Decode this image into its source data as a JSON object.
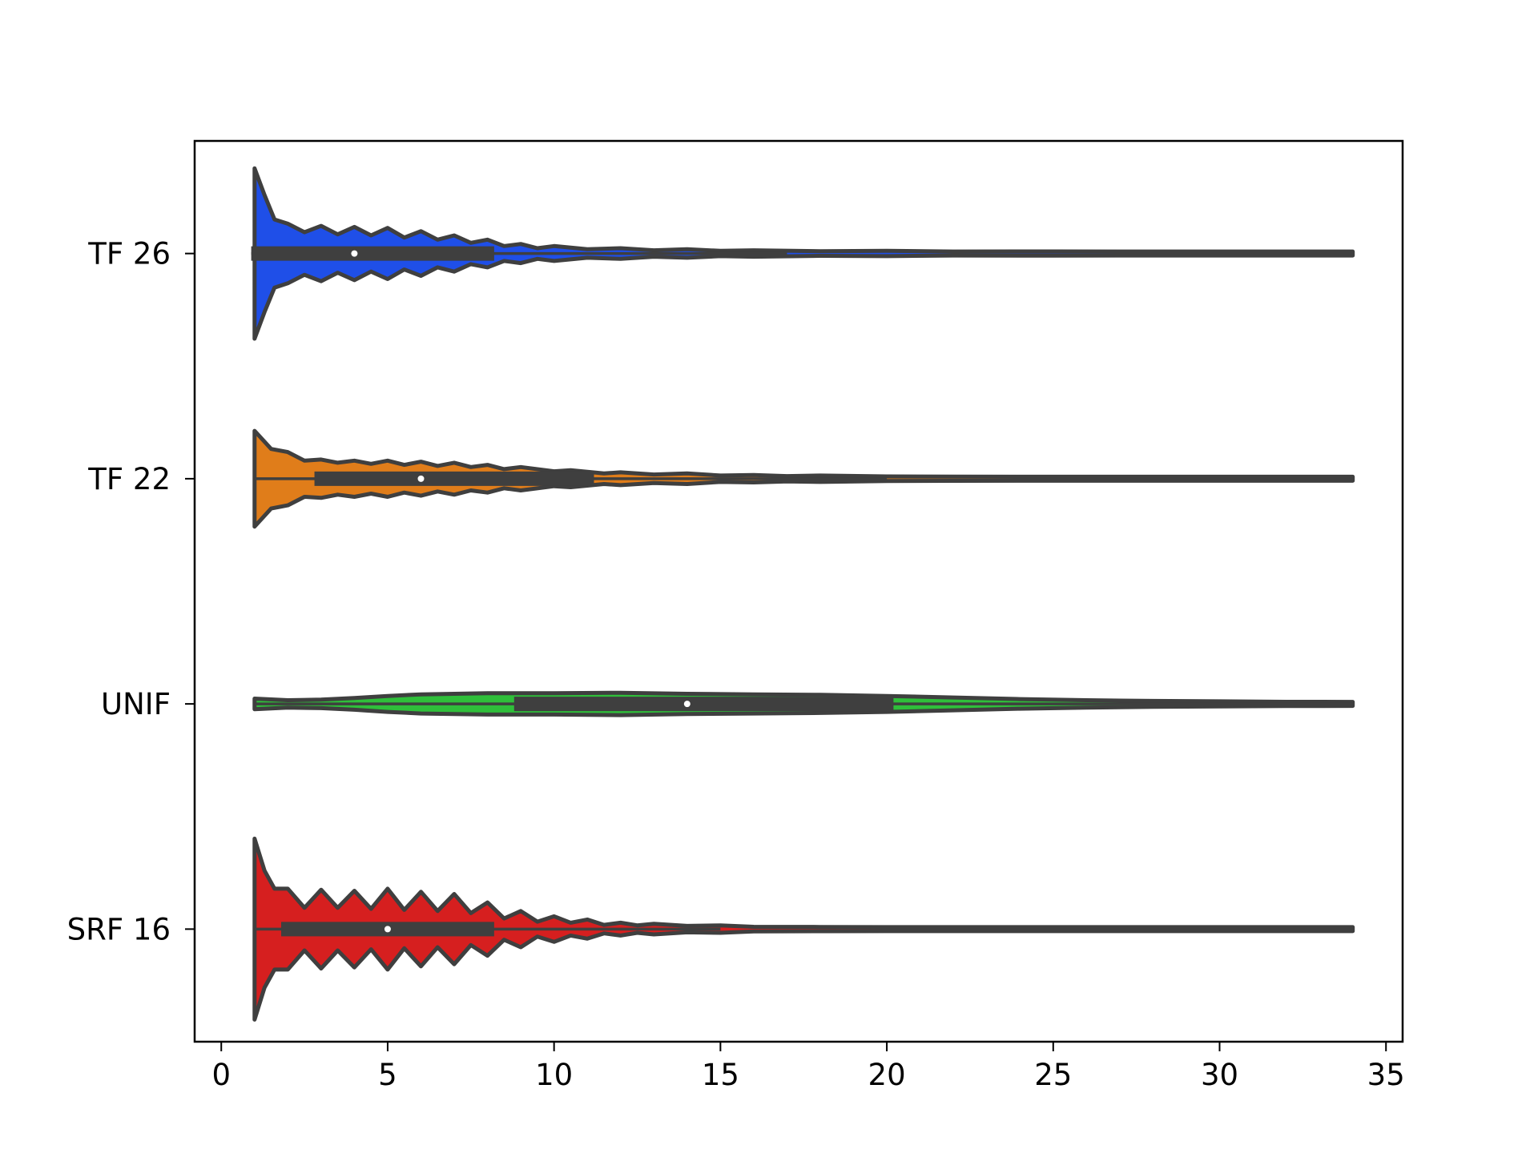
{
  "chart_data": {
    "type": "violin",
    "orientation": "horizontal",
    "categories": [
      "TF 26",
      "TF 22",
      "UNIF",
      "SRF 16"
    ],
    "xlim": [
      -0.8,
      35.5
    ],
    "xticks": [
      0,
      5,
      10,
      15,
      20,
      25,
      30,
      35
    ],
    "xlabel": "",
    "ylabel": "",
    "title": "",
    "grid": false,
    "legend": "none",
    "outline_color": "#3f3f3f",
    "series": [
      {
        "category": "TF 26",
        "color": "#1f4fe8",
        "min": 1,
        "max": 34,
        "q1": 1,
        "median": 4,
        "q3": 8.2,
        "whisker_low": 0.9,
        "whisker_high": 17,
        "density": [
          [
            1,
            0.8
          ],
          [
            1.3,
            0.55
          ],
          [
            1.6,
            0.32
          ],
          [
            2,
            0.28
          ],
          [
            2.5,
            0.2
          ],
          [
            3,
            0.26
          ],
          [
            3.5,
            0.18
          ],
          [
            4,
            0.25
          ],
          [
            4.5,
            0.17
          ],
          [
            5,
            0.24
          ],
          [
            5.5,
            0.15
          ],
          [
            6,
            0.21
          ],
          [
            6.5,
            0.13
          ],
          [
            7,
            0.17
          ],
          [
            7.5,
            0.1
          ],
          [
            8,
            0.13
          ],
          [
            8.5,
            0.07
          ],
          [
            9,
            0.09
          ],
          [
            9.5,
            0.05
          ],
          [
            10,
            0.07
          ],
          [
            11,
            0.04
          ],
          [
            12,
            0.05
          ],
          [
            13,
            0.03
          ],
          [
            14,
            0.04
          ],
          [
            15,
            0.025
          ],
          [
            16,
            0.03
          ],
          [
            18,
            0.022
          ],
          [
            20,
            0.025
          ],
          [
            22,
            0.018
          ],
          [
            25,
            0.02
          ],
          [
            28,
            0.016
          ],
          [
            31,
            0.016
          ],
          [
            34,
            0.014
          ]
        ]
      },
      {
        "category": "TF 22",
        "color": "#e07d1a",
        "min": 1,
        "max": 34,
        "q1": 2.8,
        "median": 6,
        "q3": 11.2,
        "whisker_low": 1,
        "whisker_high": 20,
        "density": [
          [
            1,
            0.45
          ],
          [
            1.5,
            0.28
          ],
          [
            2,
            0.25
          ],
          [
            2.5,
            0.17
          ],
          [
            3,
            0.18
          ],
          [
            3.5,
            0.15
          ],
          [
            4,
            0.17
          ],
          [
            4.5,
            0.14
          ],
          [
            5,
            0.17
          ],
          [
            5.5,
            0.13
          ],
          [
            6,
            0.16
          ],
          [
            6.5,
            0.12
          ],
          [
            7,
            0.15
          ],
          [
            7.5,
            0.11
          ],
          [
            8,
            0.13
          ],
          [
            8.5,
            0.09
          ],
          [
            9,
            0.11
          ],
          [
            10,
            0.07
          ],
          [
            10.5,
            0.08
          ],
          [
            11.5,
            0.05
          ],
          [
            12,
            0.06
          ],
          [
            13,
            0.04
          ],
          [
            14,
            0.05
          ],
          [
            15,
            0.03
          ],
          [
            16,
            0.035
          ],
          [
            17,
            0.025
          ],
          [
            18,
            0.03
          ],
          [
            20,
            0.022
          ],
          [
            22,
            0.02
          ],
          [
            25,
            0.018
          ],
          [
            28,
            0.016
          ],
          [
            31,
            0.015
          ],
          [
            34,
            0.014
          ]
        ]
      },
      {
        "category": "UNIF",
        "color": "#2fbf3a",
        "min": 1,
        "max": 34,
        "q1": 8.8,
        "median": 14,
        "q3": 20.2,
        "whisker_low": 1,
        "whisker_high": 34,
        "density": [
          [
            1,
            0.05
          ],
          [
            2,
            0.035
          ],
          [
            3,
            0.04
          ],
          [
            4,
            0.055
          ],
          [
            5,
            0.075
          ],
          [
            6,
            0.09
          ],
          [
            8,
            0.1
          ],
          [
            10,
            0.1
          ],
          [
            12,
            0.105
          ],
          [
            14,
            0.095
          ],
          [
            16,
            0.09
          ],
          [
            18,
            0.085
          ],
          [
            20,
            0.075
          ],
          [
            22,
            0.06
          ],
          [
            24,
            0.045
          ],
          [
            26,
            0.035
          ],
          [
            28,
            0.028
          ],
          [
            30,
            0.024
          ],
          [
            32,
            0.02
          ],
          [
            34,
            0.018
          ]
        ]
      },
      {
        "category": "SRF 16",
        "color": "#d61f1f",
        "min": 1,
        "max": 34,
        "q1": 1.8,
        "median": 5,
        "q3": 8.2,
        "whisker_low": 1,
        "whisker_high": 15,
        "density": [
          [
            1,
            0.85
          ],
          [
            1.3,
            0.55
          ],
          [
            1.6,
            0.38
          ],
          [
            2,
            0.38
          ],
          [
            2.5,
            0.2
          ],
          [
            3,
            0.37
          ],
          [
            3.5,
            0.2
          ],
          [
            4,
            0.36
          ],
          [
            4.5,
            0.19
          ],
          [
            5,
            0.38
          ],
          [
            5.5,
            0.18
          ],
          [
            6,
            0.35
          ],
          [
            6.5,
            0.17
          ],
          [
            7,
            0.33
          ],
          [
            7.5,
            0.15
          ],
          [
            8,
            0.25
          ],
          [
            8.5,
            0.1
          ],
          [
            9,
            0.17
          ],
          [
            9.5,
            0.07
          ],
          [
            10,
            0.12
          ],
          [
            10.5,
            0.06
          ],
          [
            11,
            0.09
          ],
          [
            11.5,
            0.04
          ],
          [
            12,
            0.06
          ],
          [
            12.5,
            0.035
          ],
          [
            13,
            0.05
          ],
          [
            14,
            0.03
          ],
          [
            15,
            0.035
          ],
          [
            16,
            0.022
          ],
          [
            18,
            0.02
          ],
          [
            20,
            0.016
          ],
          [
            23,
            0.014
          ],
          [
            27,
            0.013
          ],
          [
            30,
            0.013
          ],
          [
            34,
            0.012
          ]
        ]
      }
    ]
  }
}
